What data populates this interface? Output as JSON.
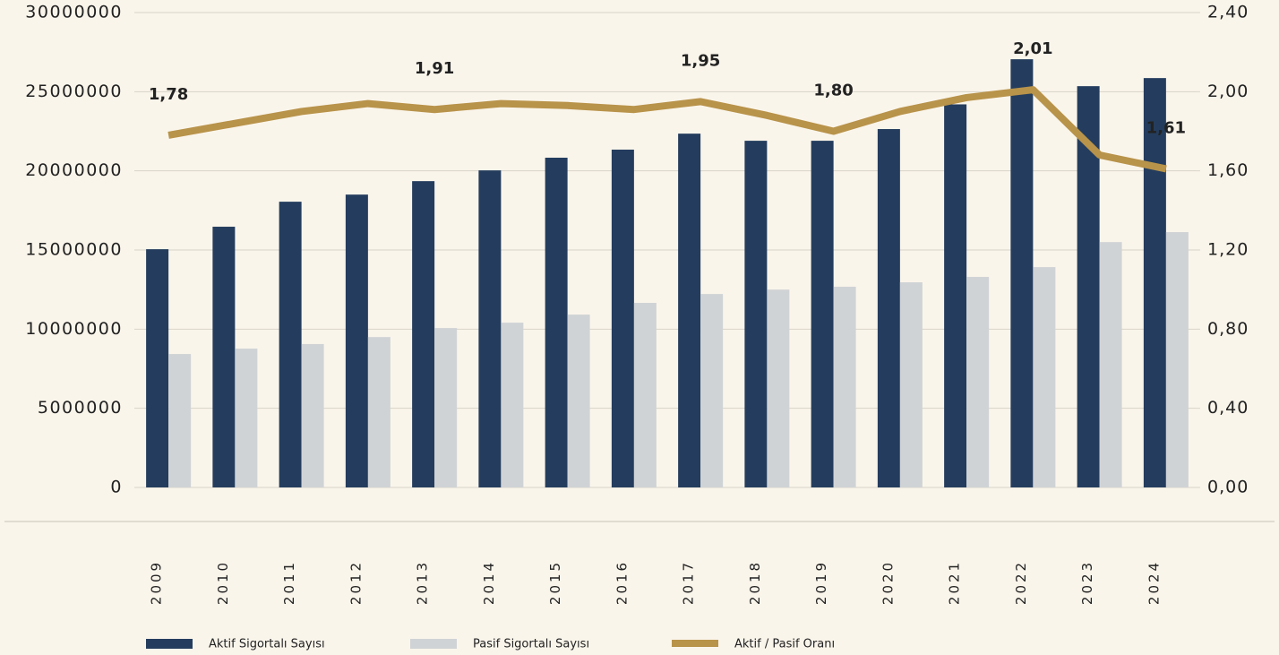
{
  "chart_data": {
    "type": "bar-line",
    "categories": [
      "2009",
      "2010",
      "2011",
      "2012",
      "2013",
      "2014",
      "2015",
      "2016",
      "2017",
      "2018",
      "2019",
      "2020",
      "2021",
      "2022",
      "2023",
      "2024"
    ],
    "series": [
      {
        "name": "Aktif Sigortalı Sayısı",
        "type": "bar",
        "color": "#243d5e",
        "values": [
          15050000,
          16470000,
          18050000,
          18500000,
          19350000,
          20030000,
          20830000,
          21340000,
          22350000,
          21900000,
          21900000,
          22640000,
          24200000,
          27050000,
          25350000,
          25860000
        ]
      },
      {
        "name": "Pasif Sigortalı Sayısı",
        "type": "bar",
        "color": "#d0d3d5",
        "values": [
          8430000,
          8770000,
          9060000,
          9500000,
          10070000,
          10410000,
          10920000,
          11660000,
          12220000,
          12500000,
          12680000,
          12960000,
          13300000,
          13920000,
          15500000,
          16130000
        ]
      },
      {
        "name": "Aktif / Pasif Oranı",
        "type": "line",
        "axis": "y2",
        "color": "#b8934a",
        "values": [
          1.78,
          1.84,
          1.9,
          1.94,
          1.91,
          1.94,
          1.93,
          1.91,
          1.95,
          1.88,
          1.8,
          1.9,
          1.97,
          2.01,
          1.68,
          1.61
        ],
        "value_labels": [
          "1,78",
          null,
          null,
          null,
          "1,91",
          null,
          null,
          null,
          "1,95",
          null,
          "1,80",
          null,
          null,
          "2,01",
          null,
          "1,61"
        ]
      }
    ],
    "ylim": [
      0,
      30000000
    ],
    "yticks": [
      0,
      5000000,
      10000000,
      15000000,
      20000000,
      25000000,
      30000000
    ],
    "y2lim": [
      0,
      2.4
    ],
    "y2ticks": [
      {
        "value": 0,
        "label": "0,00"
      },
      {
        "value": 0.4,
        "label": "0,40"
      },
      {
        "value": 0.8,
        "label": "0,80"
      },
      {
        "value": 1.2,
        "label": "1,20"
      },
      {
        "value": 1.6,
        "label": "1,60"
      },
      {
        "value": 2.0,
        "label": "2,00"
      },
      {
        "value": 2.4,
        "label": "2,40"
      }
    ],
    "grid": true
  }
}
